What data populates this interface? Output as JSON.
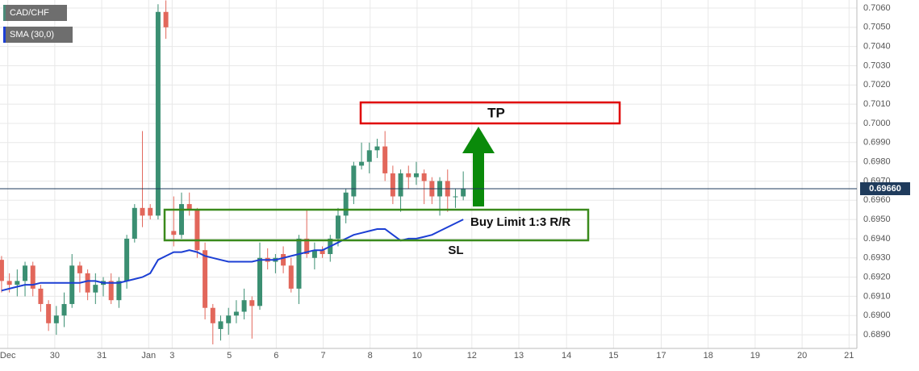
{
  "chart_data": {
    "type": "candlestick",
    "legend": [
      {
        "name": "CAD/CHF",
        "color": "#4a8a78"
      },
      {
        "name": "SMA (30,0)",
        "color": "#1c3fd4"
      }
    ],
    "up_color": "#3b8f72",
    "down_color": "#e2675b",
    "open": [
      0.6929,
      0.6918,
      0.6916,
      0.6918,
      0.6926,
      0.6914,
      0.6906,
      0.6896,
      0.69,
      0.6906,
      0.6926,
      0.6922,
      0.6912,
      0.6916,
      0.6918,
      0.6908,
      0.6918,
      0.694,
      0.6956,
      0.6956,
      0.6952,
      0.7058,
      0.6944,
      0.6942,
      0.6958,
      0.6955,
      0.6934,
      0.6904,
      0.6893,
      0.6896,
      0.69,
      0.6902,
      0.6908,
      0.6905,
      0.693,
      0.6928,
      0.6932,
      0.6926,
      0.6914,
      0.694,
      0.693,
      0.6934,
      0.6932,
      0.694,
      0.6952,
      0.6962,
      0.6978,
      0.698,
      0.6986,
      0.6988,
      0.6974,
      0.6962,
      0.6974,
      0.6972,
      0.6974,
      0.697,
      0.6962,
      0.697,
      0.6962,
      0.6962
    ],
    "high": [
      0.6931,
      0.6922,
      0.6924,
      0.6928,
      0.6928,
      0.6916,
      0.6908,
      0.6905,
      0.6912,
      0.6932,
      0.6928,
      0.6924,
      0.6922,
      0.692,
      0.6922,
      0.692,
      0.6942,
      0.6958,
      0.6996,
      0.6958,
      0.7062,
      0.7064,
      0.6962,
      0.6964,
      0.6964,
      0.6956,
      0.6938,
      0.6906,
      0.69,
      0.6904,
      0.6908,
      0.6914,
      0.691,
      0.6938,
      0.6935,
      0.6932,
      0.6936,
      0.693,
      0.6942,
      0.6955,
      0.6938,
      0.6936,
      0.6942,
      0.6956,
      0.6966,
      0.698,
      0.699,
      0.699,
      0.6992,
      0.6996,
      0.6978,
      0.6976,
      0.6978,
      0.698,
      0.6976,
      0.6972,
      0.6972,
      0.6976,
      0.6966,
      0.6975
    ],
    "low": [
      0.6912,
      0.6912,
      0.691,
      0.691,
      0.691,
      0.6902,
      0.6892,
      0.689,
      0.6894,
      0.6904,
      0.6912,
      0.6908,
      0.6906,
      0.691,
      0.6906,
      0.6904,
      0.6914,
      0.6938,
      0.6946,
      0.695,
      0.695,
      0.7044,
      0.6936,
      0.694,
      0.6952,
      0.693,
      0.6898,
      0.6885,
      0.6887,
      0.689,
      0.6896,
      0.6898,
      0.6888,
      0.6903,
      0.6924,
      0.6922,
      0.6922,
      0.6912,
      0.6906,
      0.693,
      0.6924,
      0.693,
      0.6928,
      0.6936,
      0.6948,
      0.6958,
      0.6976,
      0.6974,
      0.6982,
      0.697,
      0.6958,
      0.6954,
      0.6966,
      0.6968,
      0.6958,
      0.6958,
      0.6952,
      0.6954,
      0.6956,
      0.696
    ],
    "close": [
      0.6918,
      0.6916,
      0.6918,
      0.6926,
      0.6914,
      0.6906,
      0.6896,
      0.69,
      0.6906,
      0.6926,
      0.6922,
      0.6912,
      0.6916,
      0.6918,
      0.6908,
      0.6918,
      0.694,
      0.6956,
      0.6952,
      0.6952,
      0.7058,
      0.705,
      0.6942,
      0.6958,
      0.6955,
      0.6934,
      0.6904,
      0.6896,
      0.6897,
      0.69,
      0.6902,
      0.6908,
      0.6905,
      0.693,
      0.6928,
      0.693,
      0.6926,
      0.6914,
      0.694,
      0.6932,
      0.6934,
      0.6932,
      0.694,
      0.6952,
      0.6964,
      0.6978,
      0.698,
      0.6986,
      0.6988,
      0.6974,
      0.6962,
      0.6974,
      0.6972,
      0.6974,
      0.697,
      0.6962,
      0.697,
      0.6962,
      0.6962,
      0.6966
    ],
    "sma": [
      0.6913,
      0.6914,
      0.6915,
      0.6916,
      0.6916,
      0.6917,
      0.6917,
      0.6917,
      0.6917,
      0.6917,
      0.6917,
      0.6918,
      0.6918,
      0.6917,
      0.6917,
      0.6917,
      0.6918,
      0.6919,
      0.692,
      0.6922,
      0.6929,
      0.6931,
      0.6933,
      0.6933,
      0.6934,
      0.6933,
      0.6931,
      0.693,
      0.6929,
      0.6928,
      0.6928,
      0.6928,
      0.6928,
      0.6929,
      0.6929,
      0.6929,
      0.693,
      0.6931,
      0.6932,
      0.6933,
      0.6934,
      0.6934,
      0.6936,
      0.6938,
      0.694,
      0.6942,
      0.6943,
      0.6944,
      0.6945,
      0.6945,
      0.6942,
      0.6939,
      0.694,
      0.694,
      0.6941,
      0.6942,
      0.6944,
      0.6946,
      0.6948,
      0.695
    ],
    "last_price": {
      "value": 0.6966,
      "label": "0.69660"
    },
    "xlim": [
      -0.2,
      109.3
    ],
    "xticks": [
      {
        "value": 0.8,
        "label": "Dec"
      },
      {
        "value": 6.8,
        "label": "30"
      },
      {
        "value": 12.8,
        "label": "31"
      },
      {
        "value": 18.8,
        "label": "Jan"
      },
      {
        "value": 21.8,
        "label": "3"
      },
      {
        "value": 29.1,
        "label": "5"
      },
      {
        "value": 35.1,
        "label": "6"
      },
      {
        "value": 41.1,
        "label": "7"
      },
      {
        "value": 47.1,
        "label": "8"
      },
      {
        "value": 53.1,
        "label": "10"
      },
      {
        "value": 60.1,
        "label": "12"
      },
      {
        "value": 66.1,
        "label": "13"
      },
      {
        "value": 72.2,
        "label": "14"
      },
      {
        "value": 78.2,
        "label": "15"
      },
      {
        "value": 84.3,
        "label": "17"
      },
      {
        "value": 90.3,
        "label": "18"
      },
      {
        "value": 96.3,
        "label": "19"
      },
      {
        "value": 102.3,
        "label": "20"
      },
      {
        "value": 108.3,
        "label": "21"
      }
    ],
    "ylim": [
      0.68829,
      0.70642
    ],
    "yticks": [
      {
        "value": 0.689,
        "label": "0.6890"
      },
      {
        "value": 0.69,
        "label": "0.6900"
      },
      {
        "value": 0.691,
        "label": "0.6910"
      },
      {
        "value": 0.692,
        "label": "0.6920"
      },
      {
        "value": 0.693,
        "label": "0.6930"
      },
      {
        "value": 0.694,
        "label": "0.6940"
      },
      {
        "value": 0.695,
        "label": "0.6950"
      },
      {
        "value": 0.696,
        "label": "0.6960"
      },
      {
        "value": 0.697,
        "label": "0.6970"
      },
      {
        "value": 0.698,
        "label": "0.6980"
      },
      {
        "value": 0.699,
        "label": "0.6990"
      },
      {
        "value": 0.7,
        "label": "0.7000"
      },
      {
        "value": 0.701,
        "label": "0.7010"
      },
      {
        "value": 0.702,
        "label": "0.7020"
      },
      {
        "value": 0.703,
        "label": "0.7030"
      },
      {
        "value": 0.704,
        "label": "0.7040"
      },
      {
        "value": 0.705,
        "label": "0.7050"
      },
      {
        "value": 0.706,
        "label": "0.7060"
      }
    ],
    "grid": true,
    "annotations": [
      "TP",
      "Buy Limit 1:3 R/R",
      "SL"
    ]
  }
}
